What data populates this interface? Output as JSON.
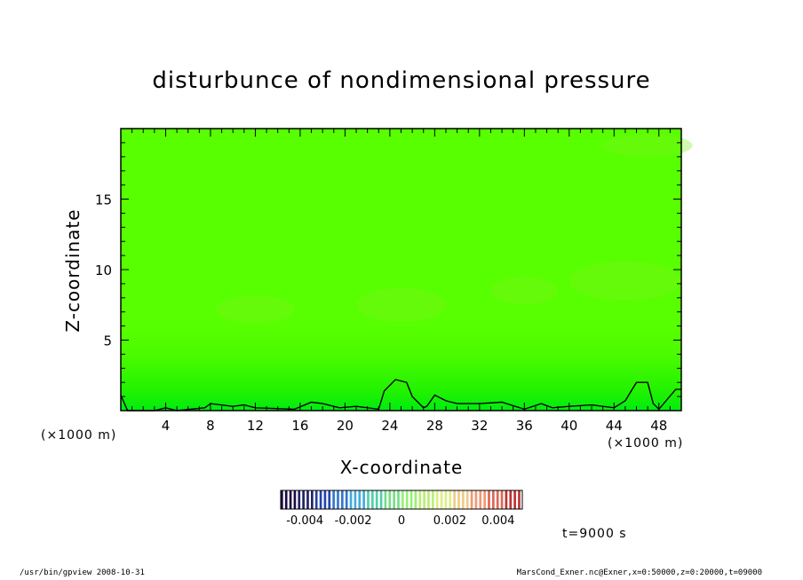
{
  "chart_data": {
    "type": "heatmap",
    "title": "disturbunce of nondimensional pressure",
    "xlabel": "X-coordinate",
    "ylabel": "Z-coordinate",
    "x_unit": "(×1000 m)",
    "y_unit": "(×1000 m)",
    "xlim": [
      0,
      50
    ],
    "ylim": [
      0,
      20
    ],
    "x_ticks": [
      4,
      8,
      12,
      16,
      20,
      24,
      28,
      32,
      36,
      40,
      44,
      48
    ],
    "y_ticks": [
      5,
      10,
      15
    ],
    "field_description_colors": {
      "near_surface": "#00ef08",
      "low_layer": "#2ef500",
      "main": "#57ff00",
      "upper_patches": "#7df01a"
    },
    "zero_contour": [
      [
        0,
        1.1
      ],
      [
        0.6,
        0.0
      ],
      [
        3.0,
        0.0
      ],
      [
        4.0,
        0.2
      ],
      [
        5.0,
        0.0
      ],
      [
        7.5,
        0.2
      ],
      [
        8.0,
        0.5
      ],
      [
        10.0,
        0.3
      ],
      [
        11.0,
        0.4
      ],
      [
        12.0,
        0.2
      ],
      [
        15.5,
        0.1
      ],
      [
        17.0,
        0.6
      ],
      [
        18.0,
        0.5
      ],
      [
        19.5,
        0.2
      ],
      [
        21.0,
        0.3
      ],
      [
        23.0,
        0.1
      ],
      [
        23.5,
        1.4
      ],
      [
        24.5,
        2.2
      ],
      [
        25.5,
        2.0
      ],
      [
        26.0,
        1.0
      ],
      [
        27.0,
        0.2
      ],
      [
        27.3,
        0.3
      ],
      [
        28.0,
        1.1
      ],
      [
        29.0,
        0.7
      ],
      [
        30.0,
        0.5
      ],
      [
        32.0,
        0.5
      ],
      [
        34.0,
        0.6
      ],
      [
        36.0,
        0.1
      ],
      [
        37.5,
        0.5
      ],
      [
        38.5,
        0.2
      ],
      [
        40.0,
        0.3
      ],
      [
        42.0,
        0.4
      ],
      [
        44.0,
        0.2
      ],
      [
        45.0,
        0.7
      ],
      [
        46.0,
        2.0
      ],
      [
        47.0,
        2.0
      ],
      [
        47.5,
        0.5
      ],
      [
        48.0,
        0.1
      ],
      [
        49.5,
        1.5
      ],
      [
        50.0,
        1.5
      ]
    ],
    "colorbar": {
      "range": [
        -0.005,
        0.005
      ],
      "tick_labels": [
        "-0.004",
        "-0.002",
        "0",
        "0.002",
        "0.004"
      ],
      "tick_values": [
        -0.004,
        -0.002,
        0,
        0.002,
        0.004
      ],
      "colors": [
        "#1a0a40",
        "#222266",
        "#2244aa",
        "#3377cc",
        "#44aadd",
        "#55ccaa",
        "#77dd88",
        "#99ee77",
        "#bbee77",
        "#ddee88",
        "#eecc88",
        "#ee9977",
        "#dd6655",
        "#bb3333"
      ]
    }
  },
  "time_label": "t=9000 s",
  "footer": {
    "left": "/usr/bin/gpview   2008-10-31",
    "right": "MarsCond_Exner.nc@Exner,x=0:50000,z=0:20000,t=09000"
  }
}
